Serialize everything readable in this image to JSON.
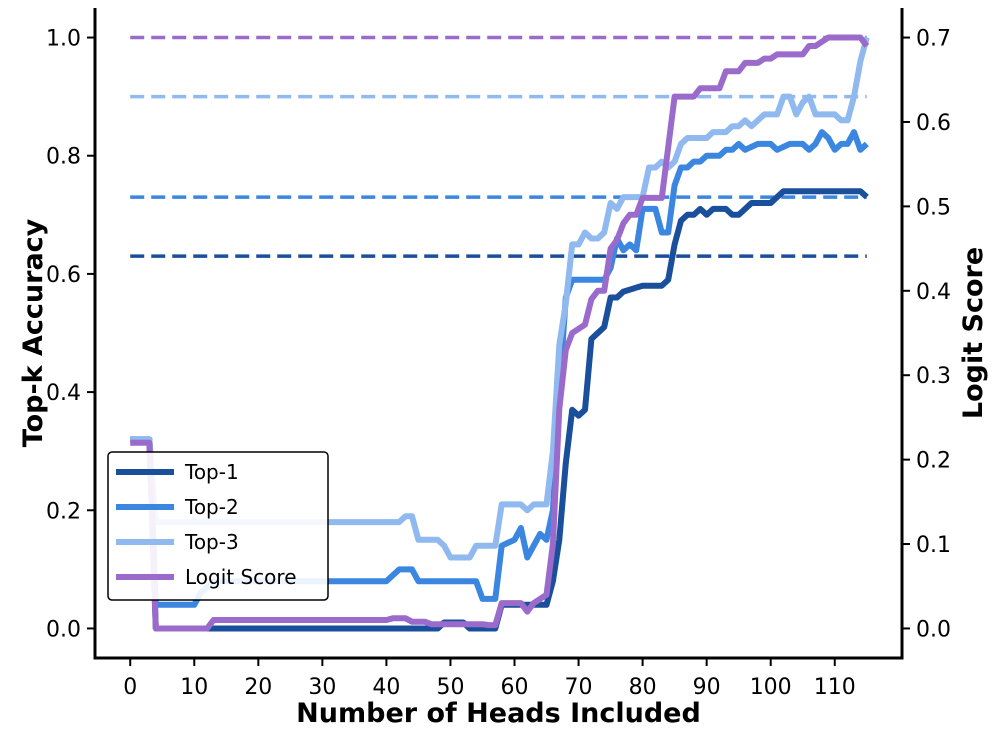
{
  "chart_data": {
    "type": "line",
    "xlabel": "Number of Heads Included",
    "ylabel_left": "Top-k Accuracy",
    "ylabel_right": "Logit Score",
    "xlim": [
      -5.5,
      120.5
    ],
    "ylim_left": [
      -0.05,
      1.05
    ],
    "ylim_right": [
      -0.035,
      0.735
    ],
    "x_ticks": [
      0,
      10,
      20,
      30,
      40,
      50,
      60,
      70,
      80,
      90,
      100,
      110
    ],
    "x_tick_labels": [
      "0",
      "10",
      "20",
      "30",
      "40",
      "50",
      "60",
      "70",
      "80",
      "90",
      "100",
      "110"
    ],
    "y_left_ticks": [
      0.0,
      0.2,
      0.4,
      0.6,
      0.8,
      1.0
    ],
    "y_left_tick_labels": [
      "0.0",
      "0.2",
      "0.4",
      "0.6",
      "0.8",
      "1.0"
    ],
    "y_right_ticks": [
      0.0,
      0.1,
      0.2,
      0.3,
      0.4,
      0.5,
      0.6,
      0.7
    ],
    "y_right_tick_labels": [
      "0.0",
      "0.1",
      "0.2",
      "0.3",
      "0.4",
      "0.5",
      "0.6",
      "0.7"
    ],
    "legend_position": "lower-left",
    "reference_lines": [
      {
        "series": "Top-1",
        "value": 0.63,
        "style": "dashed"
      },
      {
        "series": "Top-2",
        "value": 0.73,
        "style": "dashed"
      },
      {
        "series": "Top-3",
        "value": 0.9,
        "style": "dashed"
      },
      {
        "series": "Logit Score",
        "value": 1.0,
        "style": "dashed"
      }
    ],
    "series": [
      {
        "name": "Top-1",
        "color": "#1a4f9c",
        "points": [
          [
            0,
            0.32
          ],
          [
            1,
            0.32
          ],
          [
            2,
            0.32
          ],
          [
            3,
            0.32
          ],
          [
            4,
            0.0
          ],
          [
            6,
            0.0
          ],
          [
            10,
            0.0
          ],
          [
            20,
            0.0
          ],
          [
            30,
            0.0
          ],
          [
            40,
            0.0
          ],
          [
            48,
            0.0
          ],
          [
            49,
            0.01
          ],
          [
            52,
            0.01
          ],
          [
            53,
            0.0
          ],
          [
            57,
            0.0
          ],
          [
            58,
            0.04
          ],
          [
            65,
            0.04
          ],
          [
            66,
            0.08
          ],
          [
            67,
            0.15
          ],
          [
            68,
            0.28
          ],
          [
            69,
            0.37
          ],
          [
            70,
            0.36
          ],
          [
            71,
            0.37
          ],
          [
            72,
            0.49
          ],
          [
            73,
            0.5
          ],
          [
            74,
            0.51
          ],
          [
            75,
            0.56
          ],
          [
            76,
            0.56
          ],
          [
            77,
            0.57
          ],
          [
            80,
            0.58
          ],
          [
            83,
            0.58
          ],
          [
            84,
            0.59
          ],
          [
            85,
            0.65
          ],
          [
            86,
            0.69
          ],
          [
            87,
            0.7
          ],
          [
            88,
            0.7
          ],
          [
            89,
            0.71
          ],
          [
            90,
            0.7
          ],
          [
            91,
            0.71
          ],
          [
            92,
            0.71
          ],
          [
            93,
            0.71
          ],
          [
            94,
            0.7
          ],
          [
            95,
            0.7
          ],
          [
            96,
            0.71
          ],
          [
            97,
            0.72
          ],
          [
            100,
            0.72
          ],
          [
            101,
            0.73
          ],
          [
            102,
            0.74
          ],
          [
            114,
            0.74
          ],
          [
            115,
            0.73
          ]
        ]
      },
      {
        "name": "Top-2",
        "color": "#3a86e0",
        "points": [
          [
            0,
            0.32
          ],
          [
            3,
            0.32
          ],
          [
            4,
            0.04
          ],
          [
            10,
            0.04
          ],
          [
            11,
            0.06
          ],
          [
            12,
            0.07
          ],
          [
            13,
            0.08
          ],
          [
            40,
            0.08
          ],
          [
            42,
            0.1
          ],
          [
            44,
            0.1
          ],
          [
            45,
            0.08
          ],
          [
            54,
            0.08
          ],
          [
            55,
            0.05
          ],
          [
            57,
            0.05
          ],
          [
            58,
            0.14
          ],
          [
            60,
            0.15
          ],
          [
            61,
            0.17
          ],
          [
            62,
            0.12
          ],
          [
            63,
            0.14
          ],
          [
            64,
            0.16
          ],
          [
            65,
            0.15
          ],
          [
            66,
            0.2
          ],
          [
            67,
            0.4
          ],
          [
            68,
            0.56
          ],
          [
            69,
            0.59
          ],
          [
            74,
            0.59
          ],
          [
            75,
            0.61
          ],
          [
            76,
            0.66
          ],
          [
            77,
            0.64
          ],
          [
            78,
            0.65
          ],
          [
            79,
            0.64
          ],
          [
            80,
            0.71
          ],
          [
            82,
            0.71
          ],
          [
            83,
            0.67
          ],
          [
            84,
            0.67
          ],
          [
            85,
            0.75
          ],
          [
            86,
            0.78
          ],
          [
            87,
            0.78
          ],
          [
            88,
            0.79
          ],
          [
            89,
            0.79
          ],
          [
            90,
            0.8
          ],
          [
            92,
            0.8
          ],
          [
            93,
            0.81
          ],
          [
            94,
            0.81
          ],
          [
            95,
            0.82
          ],
          [
            96,
            0.81
          ],
          [
            98,
            0.82
          ],
          [
            100,
            0.82
          ],
          [
            101,
            0.81
          ],
          [
            103,
            0.82
          ],
          [
            105,
            0.82
          ],
          [
            106,
            0.81
          ],
          [
            107,
            0.82
          ],
          [
            108,
            0.84
          ],
          [
            109,
            0.83
          ],
          [
            110,
            0.81
          ],
          [
            111,
            0.82
          ],
          [
            112,
            0.82
          ],
          [
            113,
            0.84
          ],
          [
            114,
            0.81
          ],
          [
            115,
            0.82
          ]
        ]
      },
      {
        "name": "Top-3",
        "color": "#8fb9ef",
        "points": [
          [
            0,
            0.32
          ],
          [
            3,
            0.32
          ],
          [
            4,
            0.18
          ],
          [
            42,
            0.18
          ],
          [
            43,
            0.19
          ],
          [
            44,
            0.19
          ],
          [
            45,
            0.15
          ],
          [
            48,
            0.15
          ],
          [
            49,
            0.14
          ],
          [
            50,
            0.12
          ],
          [
            53,
            0.12
          ],
          [
            54,
            0.14
          ],
          [
            57,
            0.14
          ],
          [
            58,
            0.21
          ],
          [
            61,
            0.21
          ],
          [
            62,
            0.2
          ],
          [
            63,
            0.21
          ],
          [
            65,
            0.21
          ],
          [
            66,
            0.3
          ],
          [
            67,
            0.48
          ],
          [
            68,
            0.55
          ],
          [
            69,
            0.65
          ],
          [
            70,
            0.65
          ],
          [
            71,
            0.67
          ],
          [
            72,
            0.66
          ],
          [
            73,
            0.66
          ],
          [
            74,
            0.67
          ],
          [
            75,
            0.72
          ],
          [
            76,
            0.71
          ],
          [
            77,
            0.73
          ],
          [
            80,
            0.73
          ],
          [
            81,
            0.78
          ],
          [
            82,
            0.78
          ],
          [
            83,
            0.79
          ],
          [
            84,
            0.78
          ],
          [
            85,
            0.79
          ],
          [
            86,
            0.82
          ],
          [
            87,
            0.83
          ],
          [
            90,
            0.83
          ],
          [
            91,
            0.84
          ],
          [
            92,
            0.84
          ],
          [
            93,
            0.84
          ],
          [
            94,
            0.85
          ],
          [
            95,
            0.85
          ],
          [
            96,
            0.86
          ],
          [
            97,
            0.85
          ],
          [
            98,
            0.86
          ],
          [
            99,
            0.87
          ],
          [
            101,
            0.87
          ],
          [
            102,
            0.9
          ],
          [
            103,
            0.9
          ],
          [
            104,
            0.87
          ],
          [
            105,
            0.89
          ],
          [
            106,
            0.9
          ],
          [
            107,
            0.87
          ],
          [
            108,
            0.87
          ],
          [
            110,
            0.87
          ],
          [
            111,
            0.86
          ],
          [
            112,
            0.86
          ],
          [
            113,
            0.9
          ],
          [
            114,
            0.96
          ],
          [
            115,
            1.0
          ]
        ]
      },
      {
        "name": "Logit Score",
        "color": "#9b6bcc",
        "points": [
          [
            0,
            0.22
          ],
          [
            3,
            0.22
          ],
          [
            4,
            0.0
          ],
          [
            12,
            0.0
          ],
          [
            13,
            0.01
          ],
          [
            14,
            0.01
          ],
          [
            40,
            0.01
          ],
          [
            41,
            0.012
          ],
          [
            43,
            0.012
          ],
          [
            44,
            0.008
          ],
          [
            46,
            0.008
          ],
          [
            47,
            0.005
          ],
          [
            55,
            0.005
          ],
          [
            56,
            0.004
          ],
          [
            57,
            0.004
          ],
          [
            58,
            0.03
          ],
          [
            61,
            0.03
          ],
          [
            62,
            0.02
          ],
          [
            63,
            0.03
          ],
          [
            65,
            0.04
          ],
          [
            66,
            0.1
          ],
          [
            67,
            0.26
          ],
          [
            68,
            0.33
          ],
          [
            69,
            0.35
          ],
          [
            71,
            0.36
          ],
          [
            72,
            0.39
          ],
          [
            73,
            0.4
          ],
          [
            74,
            0.4
          ],
          [
            75,
            0.45
          ],
          [
            76,
            0.46
          ],
          [
            77,
            0.48
          ],
          [
            78,
            0.49
          ],
          [
            79,
            0.49
          ],
          [
            80,
            0.51
          ],
          [
            81,
            0.51
          ],
          [
            82,
            0.51
          ],
          [
            83,
            0.51
          ],
          [
            84,
            0.57
          ],
          [
            85,
            0.63
          ],
          [
            86,
            0.63
          ],
          [
            87,
            0.63
          ],
          [
            88,
            0.63
          ],
          [
            89,
            0.64
          ],
          [
            90,
            0.64
          ],
          [
            91,
            0.64
          ],
          [
            92,
            0.64
          ],
          [
            93,
            0.66
          ],
          [
            95,
            0.66
          ],
          [
            96,
            0.67
          ],
          [
            97,
            0.67
          ],
          [
            98,
            0.67
          ],
          [
            99,
            0.675
          ],
          [
            100,
            0.675
          ],
          [
            101,
            0.68
          ],
          [
            104,
            0.68
          ],
          [
            105,
            0.68
          ],
          [
            106,
            0.69
          ],
          [
            107,
            0.69
          ],
          [
            108,
            0.695
          ],
          [
            109,
            0.7
          ],
          [
            110,
            0.7
          ],
          [
            112,
            0.7
          ],
          [
            113,
            0.7
          ],
          [
            114,
            0.7
          ],
          [
            115,
            0.69
          ]
        ]
      }
    ]
  }
}
